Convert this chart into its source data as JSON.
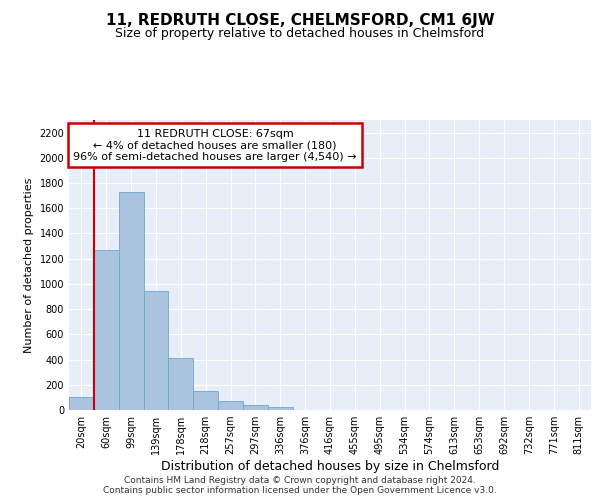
{
  "title": "11, REDRUTH CLOSE, CHELMSFORD, CM1 6JW",
  "subtitle": "Size of property relative to detached houses in Chelmsford",
  "xlabel": "Distribution of detached houses by size in Chelmsford",
  "ylabel": "Number of detached properties",
  "categories": [
    "20sqm",
    "60sqm",
    "99sqm",
    "139sqm",
    "178sqm",
    "218sqm",
    "257sqm",
    "297sqm",
    "336sqm",
    "376sqm",
    "416sqm",
    "455sqm",
    "495sqm",
    "534sqm",
    "574sqm",
    "613sqm",
    "653sqm",
    "692sqm",
    "732sqm",
    "771sqm",
    "811sqm"
  ],
  "values": [
    105,
    1270,
    1730,
    940,
    415,
    150,
    75,
    37,
    25,
    0,
    0,
    0,
    0,
    0,
    0,
    0,
    0,
    0,
    0,
    0,
    0
  ],
  "bar_color": "#aac4e0",
  "bar_edge_color": "#6ea8cc",
  "highlight_color": "#cc0000",
  "annotation_text": "11 REDRUTH CLOSE: 67sqm\n← 4% of detached houses are smaller (180)\n96% of semi-detached houses are larger (4,540) →",
  "annotation_box_color": "#cc0000",
  "ylim": [
    0,
    2300
  ],
  "yticks": [
    0,
    200,
    400,
    600,
    800,
    1000,
    1200,
    1400,
    1600,
    1800,
    2000,
    2200
  ],
  "background_color": "#e8eef8",
  "grid_color": "#ffffff",
  "footer_line1": "Contains HM Land Registry data © Crown copyright and database right 2024.",
  "footer_line2": "Contains public sector information licensed under the Open Government Licence v3.0.",
  "title_fontsize": 11,
  "subtitle_fontsize": 9,
  "ylabel_fontsize": 8,
  "xlabel_fontsize": 9,
  "tick_fontsize": 7,
  "footer_fontsize": 6.5
}
